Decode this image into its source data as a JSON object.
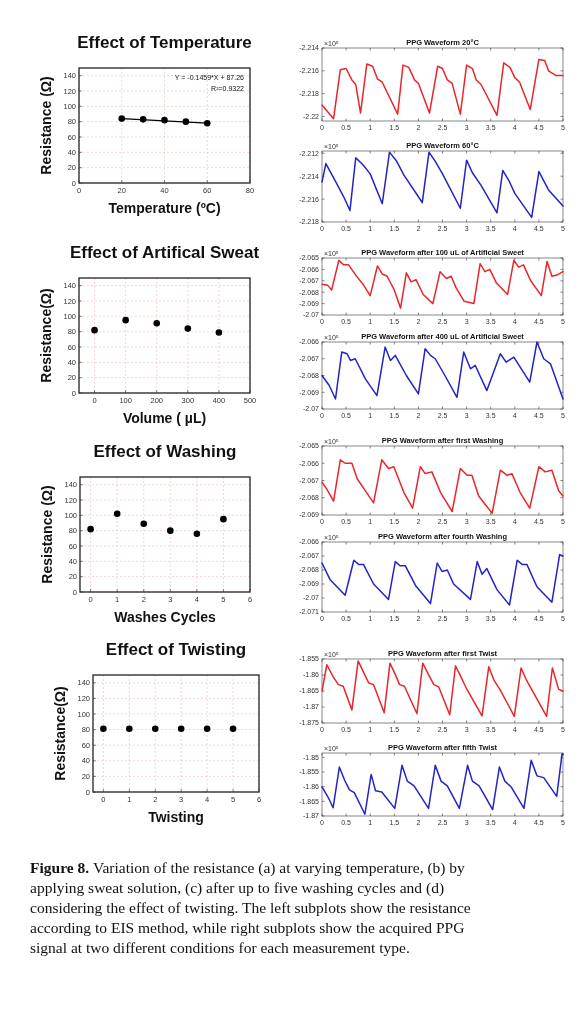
{
  "chart_data": [
    {
      "type": "scatter",
      "title": "Effect of Temperature",
      "xlabel": "Temperature (ºC)",
      "ylabel": "Resistance (Ω)",
      "xlim": [
        0,
        80
      ],
      "xticks": [
        0,
        20,
        40,
        60,
        80
      ],
      "ylim": [
        0,
        150
      ],
      "yticks": [
        0,
        20,
        40,
        60,
        80,
        100,
        120,
        140
      ],
      "grid": true,
      "annotations": [
        "Y = -0.1459*X + 87.26",
        "R²=0.9322"
      ],
      "series": [
        {
          "type": "scatter",
          "marker": "circle",
          "color": "#000000",
          "x": [
            20,
            30,
            40,
            50,
            60
          ],
          "values": [
            84,
            83,
            82,
            80,
            78
          ]
        },
        {
          "type": "line",
          "marker": "none",
          "color": "#000000",
          "x": [
            20,
            60
          ],
          "values": [
            84,
            78
          ]
        }
      ]
    },
    {
      "type": "line",
      "title": "PPG Waveform 20°C",
      "xlim": [
        0,
        5
      ],
      "xticks": [
        0,
        0.5,
        1,
        1.5,
        2,
        2.5,
        3,
        3.5,
        4,
        4.5,
        5
      ],
      "ylim": [
        -2.2204,
        -2.214
      ],
      "yticks": [
        -2.22,
        -2.218,
        -2.216,
        -2.214
      ],
      "annotations": [
        "×10⁵"
      ],
      "series": [
        {
          "color": "#e8262b",
          "x": [
            0,
            0.24,
            0.38,
            0.5,
            0.62,
            0.7,
            0.8,
            0.93,
            1.05,
            1.15,
            1.25,
            1.57,
            1.68,
            1.8,
            1.92,
            2.0,
            2.23,
            2.4,
            2.5,
            2.6,
            2.7,
            2.87,
            3.0,
            3.12,
            3.2,
            3.3,
            3.63,
            3.77,
            3.9,
            4.0,
            4.1,
            4.32,
            4.5,
            4.62,
            4.7,
            4.85,
            5
          ],
          "values": [
            -2.219,
            -2.2202,
            -2.2159,
            -2.2158,
            -2.2168,
            -2.2172,
            -2.2197,
            -2.2154,
            -2.2156,
            -2.2167,
            -2.217,
            -2.2198,
            -2.2155,
            -2.2157,
            -2.2168,
            -2.2171,
            -2.2197,
            -2.2156,
            -2.2158,
            -2.2168,
            -2.2171,
            -2.2198,
            -2.2155,
            -2.2158,
            -2.2168,
            -2.2172,
            -2.2199,
            -2.2153,
            -2.2157,
            -2.2166,
            -2.217,
            -2.2194,
            -2.215,
            -2.2151,
            -2.216,
            -2.2164,
            -2.2164
          ]
        }
      ]
    },
    {
      "type": "line",
      "title": "PPG Waveform 60°C",
      "xlim": [
        0,
        5
      ],
      "xticks": [
        0,
        0.5,
        1,
        1.5,
        2,
        2.5,
        3,
        3.5,
        4,
        4.5,
        5
      ],
      "ylim": [
        -2.218,
        -2.2118
      ],
      "yticks": [
        -2.218,
        -2.216,
        -2.214,
        -2.212
      ],
      "annotations": [
        "×10⁵"
      ],
      "series": [
        {
          "color": "#2323c8",
          "x": [
            0,
            0.08,
            0.3,
            0.45,
            0.58,
            0.7,
            0.85,
            1.0,
            1.25,
            1.4,
            1.55,
            1.7,
            2.08,
            2.22,
            2.35,
            2.5,
            2.87,
            3.0,
            3.12,
            3.3,
            3.63,
            3.75,
            3.88,
            4.0,
            4.35,
            4.5,
            4.7,
            5
          ],
          "values": [
            -2.2145,
            -2.2129,
            -2.2146,
            -2.2158,
            -2.217,
            -2.2124,
            -2.213,
            -2.2138,
            -2.2164,
            -2.2119,
            -2.2127,
            -2.2139,
            -2.2163,
            -2.2119,
            -2.2127,
            -2.2138,
            -2.2168,
            -2.2126,
            -2.2137,
            -2.2148,
            -2.2172,
            -2.2135,
            -2.2144,
            -2.2155,
            -2.2176,
            -2.2136,
            -2.2152,
            -2.2166
          ]
        }
      ]
    },
    {
      "type": "scatter",
      "title": "Effect of Artifical Sweat",
      "xlabel": "Volume ( µL)",
      "ylabel": "Resistance(Ω)",
      "xlim": [
        -50,
        500
      ],
      "xticks": [
        0,
        100,
        200,
        300,
        400,
        500
      ],
      "ylim": [
        0,
        150
      ],
      "yticks": [
        0,
        20,
        40,
        60,
        80,
        100,
        120,
        140
      ],
      "grid": true,
      "marker": "circle",
      "series": [
        {
          "type": "scatter",
          "color": "#000000",
          "x": [
            0,
            100,
            200,
            300,
            400
          ],
          "values": [
            82,
            95,
            91,
            84,
            79
          ]
        }
      ]
    },
    {
      "type": "line",
      "title": "PPG Waveform after 100 uL of Artificial Sweet",
      "xlim": [
        0,
        5
      ],
      "xticks": [
        0,
        0.5,
        1,
        1.5,
        2,
        2.5,
        3,
        3.5,
        4,
        4.5,
        5
      ],
      "ylim": [
        -2.07,
        -2.065
      ],
      "yticks": [
        -2.07,
        -2.069,
        -2.068,
        -2.067,
        -2.066,
        -2.065
      ],
      "annotations": [
        "×10⁵"
      ],
      "series": [
        {
          "color": "#e8262b",
          "x": [
            0,
            0.12,
            0.2,
            0.35,
            0.45,
            0.55,
            0.7,
            0.85,
            1.0,
            1.15,
            1.25,
            1.35,
            1.5,
            1.63,
            1.75,
            1.85,
            1.95,
            2.1,
            2.3,
            2.45,
            2.58,
            2.68,
            2.78,
            2.95,
            3.15,
            3.28,
            3.38,
            3.48,
            3.62,
            3.85,
            3.98,
            4.08,
            4.18,
            4.33,
            4.55,
            4.67,
            4.77,
            4.87,
            5
          ],
          "values": [
            -2.0673,
            -2.0674,
            -2.0678,
            -2.0652,
            -2.0656,
            -2.0656,
            -2.0665,
            -2.0673,
            -2.0683,
            -2.0657,
            -2.0664,
            -2.0666,
            -2.0678,
            -2.0694,
            -2.0663,
            -2.0671,
            -2.0669,
            -2.0682,
            -2.069,
            -2.0662,
            -2.0668,
            -2.0666,
            -2.0676,
            -2.0688,
            -2.069,
            -2.0655,
            -2.0662,
            -2.066,
            -2.0672,
            -2.0682,
            -2.0652,
            -2.0658,
            -2.0656,
            -2.067,
            -2.0683,
            -2.0653,
            -2.0666,
            -2.0665,
            -2.0662
          ]
        }
      ]
    },
    {
      "type": "line",
      "title": "PPG Waveform after 400 uL of Artificial Sweet",
      "xlim": [
        0,
        5
      ],
      "xticks": [
        0,
        0.5,
        1,
        1.5,
        2,
        2.5,
        3,
        3.5,
        4,
        4.5,
        5
      ],
      "ylim": [
        -2.07,
        -2.066
      ],
      "yticks": [
        -2.07,
        -2.069,
        -2.068,
        -2.067,
        -2.066
      ],
      "annotations": [
        "×10⁵"
      ],
      "series": [
        {
          "color": "#2323c8",
          "x": [
            0,
            0.15,
            0.28,
            0.41,
            0.52,
            0.59,
            0.69,
            0.9,
            1.14,
            1.31,
            1.42,
            1.52,
            1.75,
            2.0,
            2.14,
            2.25,
            2.35,
            2.55,
            2.8,
            2.94,
            3.08,
            3.18,
            3.42,
            3.7,
            3.82,
            3.98,
            4.31,
            4.46,
            4.6,
            4.74,
            5
          ],
          "values": [
            -2.068,
            -2.0686,
            -2.0694,
            -2.0666,
            -2.0667,
            -2.0671,
            -2.067,
            -2.0682,
            -2.0692,
            -2.0663,
            -2.0671,
            -2.0668,
            -2.068,
            -2.0691,
            -2.0664,
            -2.0668,
            -2.067,
            -2.068,
            -2.0693,
            -2.0666,
            -2.0676,
            -2.0674,
            -2.0689,
            -2.0667,
            -2.0672,
            -2.0669,
            -2.0684,
            -2.066,
            -2.067,
            -2.0673,
            -2.0694
          ]
        }
      ]
    },
    {
      "type": "scatter",
      "title": "Effect of Washing",
      "xlabel": "Washes Cycles",
      "ylabel": "Resistance (Ω)",
      "xlim": [
        -0.4,
        6
      ],
      "xticks": [
        0,
        1,
        2,
        3,
        4,
        5,
        6
      ],
      "ylim": [
        0,
        150
      ],
      "yticks": [
        0,
        20,
        40,
        60,
        80,
        100,
        120,
        140
      ],
      "grid": true,
      "marker": "circle",
      "series": [
        {
          "type": "scatter",
          "color": "#000000",
          "x": [
            0,
            1,
            2,
            3,
            4,
            5
          ],
          "values": [
            82,
            102,
            89,
            80,
            76,
            95
          ]
        }
      ]
    },
    {
      "type": "line",
      "title": "PPG Waveform after first Washing",
      "xlim": [
        0,
        5
      ],
      "xticks": [
        0,
        0.5,
        1,
        1.5,
        2,
        2.5,
        3,
        3.5,
        4,
        4.5,
        5
      ],
      "ylim": [
        -2.069,
        -2.065
      ],
      "yticks": [
        -2.069,
        -2.068,
        -2.067,
        -2.066,
        -2.065
      ],
      "annotations": [
        "×10⁵"
      ],
      "series": [
        {
          "color": "#e8262b",
          "x": [
            0,
            0.1,
            0.24,
            0.38,
            0.48,
            0.62,
            0.73,
            0.9,
            1.07,
            1.24,
            1.38,
            1.49,
            1.7,
            1.88,
            2.04,
            2.14,
            2.28,
            2.46,
            2.7,
            2.87,
            3.01,
            3.11,
            3.25,
            3.53,
            3.7,
            3.84,
            3.94,
            4.11,
            4.31,
            4.5,
            4.63,
            4.77,
            4.91,
            5
          ],
          "values": [
            -2.0671,
            -2.0675,
            -2.0682,
            -2.0658,
            -2.066,
            -2.066,
            -2.0669,
            -2.0676,
            -2.0683,
            -2.0658,
            -2.0663,
            -2.0662,
            -2.0677,
            -2.0686,
            -2.0662,
            -2.0666,
            -2.0665,
            -2.0677,
            -2.0688,
            -2.0663,
            -2.0667,
            -2.0667,
            -2.0679,
            -2.0689,
            -2.0664,
            -2.0667,
            -2.0666,
            -2.0677,
            -2.0686,
            -2.0662,
            -2.0665,
            -2.0664,
            -2.0676,
            -2.0679
          ]
        }
      ]
    },
    {
      "type": "line",
      "title": "PPG Waveform after fourth Washing",
      "xlim": [
        0,
        5
      ],
      "xticks": [
        0,
        0.5,
        1,
        1.5,
        2,
        2.5,
        3,
        3.5,
        4,
        4.5,
        5
      ],
      "ylim": [
        -2.071,
        -2.066
      ],
      "yticks": [
        -2.071,
        -2.07,
        -2.069,
        -2.068,
        -2.067,
        -2.066
      ],
      "annotations": [
        "×10⁵"
      ],
      "series": [
        {
          "color": "#2323c8",
          "x": [
            0,
            0.17,
            0.48,
            0.66,
            0.76,
            0.86,
            1.07,
            1.38,
            1.52,
            1.62,
            1.73,
            1.94,
            2.25,
            2.39,
            2.49,
            2.6,
            2.73,
            3.08,
            3.22,
            3.32,
            3.42,
            3.63,
            3.89,
            4.05,
            4.15,
            4.25,
            4.46,
            4.77,
            4.93,
            5
          ],
          "values": [
            -2.0675,
            -2.0687,
            -2.0698,
            -2.0673,
            -2.0676,
            -2.0676,
            -2.069,
            -2.0701,
            -2.0674,
            -2.0677,
            -2.0677,
            -2.0691,
            -2.0704,
            -2.0675,
            -2.0681,
            -2.068,
            -2.069,
            -2.0701,
            -2.0674,
            -2.0683,
            -2.0679,
            -2.0694,
            -2.0705,
            -2.0673,
            -2.0676,
            -2.0676,
            -2.0692,
            -2.0703,
            -2.0669,
            -2.067
          ]
        }
      ]
    },
    {
      "type": "scatter",
      "title": "Effect of Twisting",
      "xlabel": "Twisting",
      "ylabel": "Resistance(Ω)",
      "xlim": [
        -0.4,
        6
      ],
      "xticks": [
        0,
        1,
        2,
        3,
        4,
        5,
        6
      ],
      "ylim": [
        0,
        150
      ],
      "yticks": [
        0,
        20,
        40,
        60,
        80,
        100,
        120,
        140
      ],
      "grid": true,
      "marker": "circle",
      "series": [
        {
          "type": "scatter",
          "color": "#000000",
          "x": [
            0,
            1,
            2,
            3,
            4,
            5
          ],
          "values": [
            81,
            81,
            81,
            81,
            81,
            81
          ]
        }
      ]
    },
    {
      "type": "line",
      "title": "PPG Waveform after first Twist",
      "xlim": [
        0,
        5
      ],
      "xticks": [
        0,
        0.5,
        1,
        1.5,
        2,
        2.5,
        3,
        3.5,
        4,
        4.5,
        5
      ],
      "ylim": [
        -1.875,
        -1.855
      ],
      "yticks": [
        -1.875,
        -1.87,
        -1.865,
        -1.86,
        -1.855
      ],
      "annotations": [
        "×10⁵"
      ],
      "series": [
        {
          "color": "#e8262b",
          "x": [
            0,
            0.1,
            0.23,
            0.34,
            0.44,
            0.62,
            0.75,
            0.87,
            0.97,
            1.07,
            1.29,
            1.41,
            1.51,
            1.61,
            1.71,
            1.97,
            2.09,
            2.21,
            2.32,
            2.42,
            2.65,
            2.77,
            2.89,
            2.99,
            3.32,
            3.46,
            3.57,
            3.69,
            3.99,
            4.13,
            4.24,
            4.36,
            4.66,
            4.78,
            4.91,
            5
          ],
          "values": [
            -1.865,
            -1.8568,
            -1.8605,
            -1.863,
            -1.8635,
            -1.8709,
            -1.8556,
            -1.8594,
            -1.8625,
            -1.863,
            -1.8718,
            -1.8563,
            -1.8595,
            -1.863,
            -1.8635,
            -1.8721,
            -1.8563,
            -1.8599,
            -1.863,
            -1.8637,
            -1.8724,
            -1.8571,
            -1.8608,
            -1.864,
            -1.8728,
            -1.8574,
            -1.8617,
            -1.8645,
            -1.8729,
            -1.8578,
            -1.8615,
            -1.8648,
            -1.8729,
            -1.8578,
            -1.8645,
            -1.865
          ]
        }
      ]
    },
    {
      "type": "line",
      "title": "PPG Waveform after fifth Twist",
      "xlim": [
        0,
        5
      ],
      "xticks": [
        0,
        0.5,
        1,
        1.5,
        2,
        2.5,
        3,
        3.5,
        4,
        4.5,
        5
      ],
      "ylim": [
        -1.87,
        -1.8485
      ],
      "yticks": [
        -1.87,
        -1.865,
        -1.86,
        -1.855,
        -1.85
      ],
      "annotations": [
        "×10⁵"
      ],
      "series": [
        {
          "color": "#2323c8",
          "x": [
            0,
            0.13,
            0.23,
            0.36,
            0.47,
            0.57,
            0.67,
            0.89,
            1.02,
            1.11,
            1.24,
            1.51,
            1.66,
            1.77,
            1.91,
            2.21,
            2.35,
            2.47,
            2.6,
            2.85,
            3.02,
            3.12,
            3.26,
            3.54,
            3.68,
            3.79,
            3.93,
            4.19,
            4.34,
            4.46,
            4.6,
            4.87,
            4.98,
            5
          ],
          "values": [
            -1.8601,
            -1.8637,
            -1.8672,
            -1.8533,
            -1.8578,
            -1.8611,
            -1.862,
            -1.8694,
            -1.8558,
            -1.8614,
            -1.8618,
            -1.8674,
            -1.8527,
            -1.8581,
            -1.8597,
            -1.8674,
            -1.8527,
            -1.8581,
            -1.8597,
            -1.8674,
            -1.8527,
            -1.8581,
            -1.8597,
            -1.8678,
            -1.8533,
            -1.858,
            -1.8602,
            -1.8674,
            -1.851,
            -1.8563,
            -1.8569,
            -1.8633,
            -1.8488,
            -1.849
          ]
        }
      ]
    },
    {
      "type": "other",
      "annotations": [
        "Figure 8.",
        "Variation of the resistance (a) at varying temperature, (b) by applying sweat solution, (c) after up to five washing cycles and (d) considering the effect of twisting. The left subplots show the resistance according to EIS method, while right subplots show the acquired PPG signal at two different conditions for each measurement type."
      ]
    }
  ]
}
